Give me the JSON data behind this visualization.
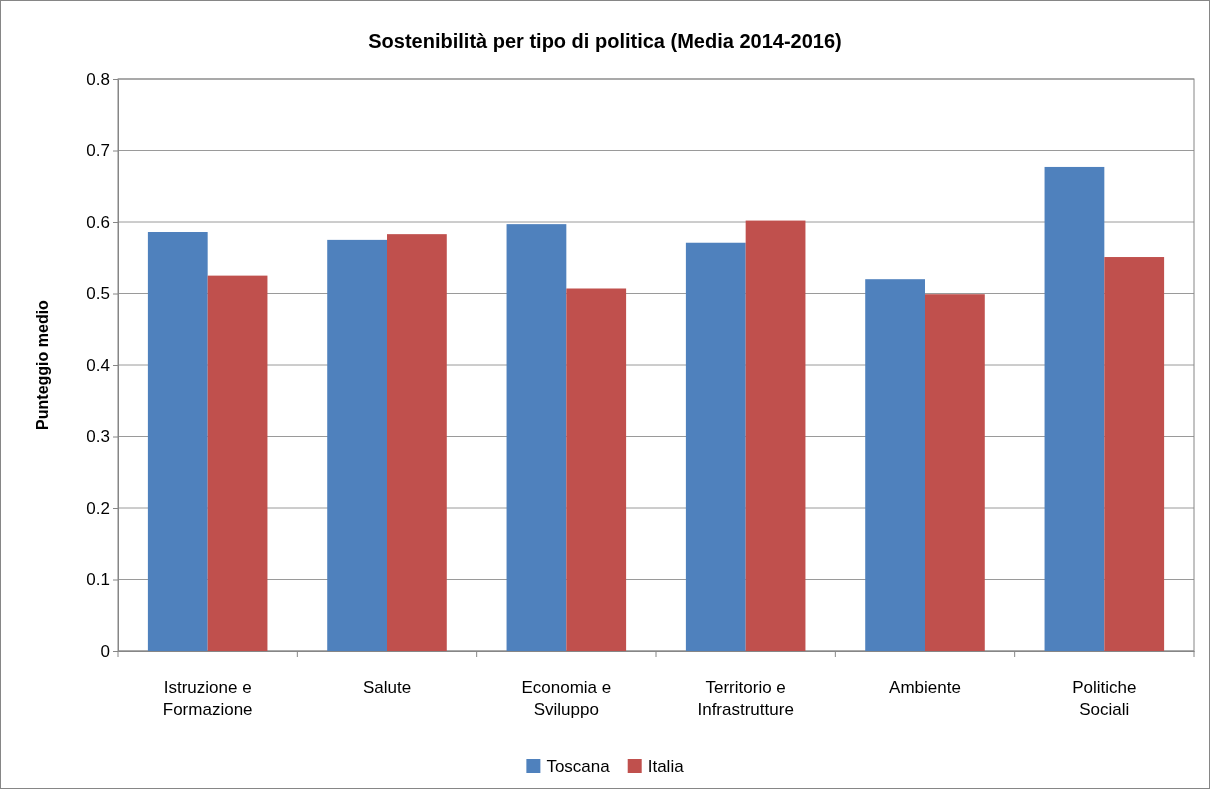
{
  "chart_data": {
    "type": "bar",
    "title": "Sostenibilità per tipo di politica (Media 2014-2016)",
    "ylabel": "Punteggio medio",
    "categories": [
      "Istruzione e Formazione",
      "Salute",
      "Economia e Sviluppo",
      "Territorio e Infrastrutture",
      "Ambiente",
      "Politiche Sociali"
    ],
    "series": [
      {
        "name": "Toscana",
        "color": "#4f81bd",
        "values": [
          0.586,
          0.575,
          0.597,
          0.571,
          0.52,
          0.677
        ]
      },
      {
        "name": "Italia",
        "color": "#c0504d",
        "values": [
          0.525,
          0.583,
          0.507,
          0.602,
          0.499,
          0.551
        ]
      }
    ],
    "ylim": [
      0,
      0.8
    ],
    "yticks": [
      0,
      0.1,
      0.2,
      0.3,
      0.4,
      0.5,
      0.6,
      0.7,
      0.8
    ],
    "grid": "y",
    "legend": "bottom"
  }
}
